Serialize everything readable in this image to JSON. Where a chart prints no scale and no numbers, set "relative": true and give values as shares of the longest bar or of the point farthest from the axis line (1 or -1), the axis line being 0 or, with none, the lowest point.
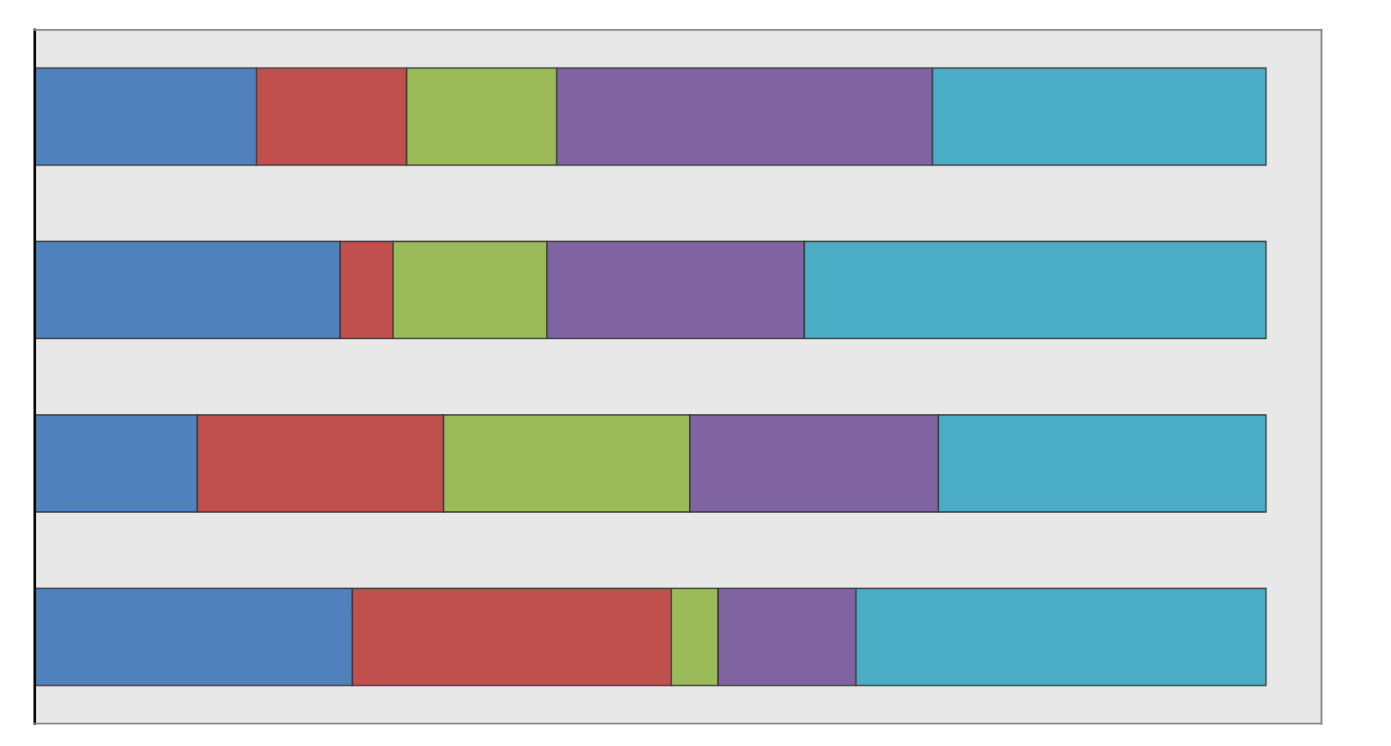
{
  "chart_data": {
    "type": "bar",
    "orientation": "horizontal",
    "stacked": true,
    "relative": true,
    "categories": [
      null,
      null,
      null,
      null
    ],
    "series": [
      {
        "color": "#4f81bd",
        "values": [
          0.18,
          0.248,
          0.132,
          0.258
        ]
      },
      {
        "color": "#c0504d",
        "values": [
          0.122,
          0.043,
          0.2,
          0.259
        ]
      },
      {
        "color": "#9bbb59",
        "values": [
          0.122,
          0.125,
          0.2,
          0.038
        ]
      },
      {
        "color": "#8064a2",
        "values": [
          0.305,
          0.209,
          0.202,
          0.112
        ]
      },
      {
        "color": "#4bacc6",
        "values": [
          0.271,
          0.375,
          0.266,
          0.333
        ]
      }
    ]
  }
}
